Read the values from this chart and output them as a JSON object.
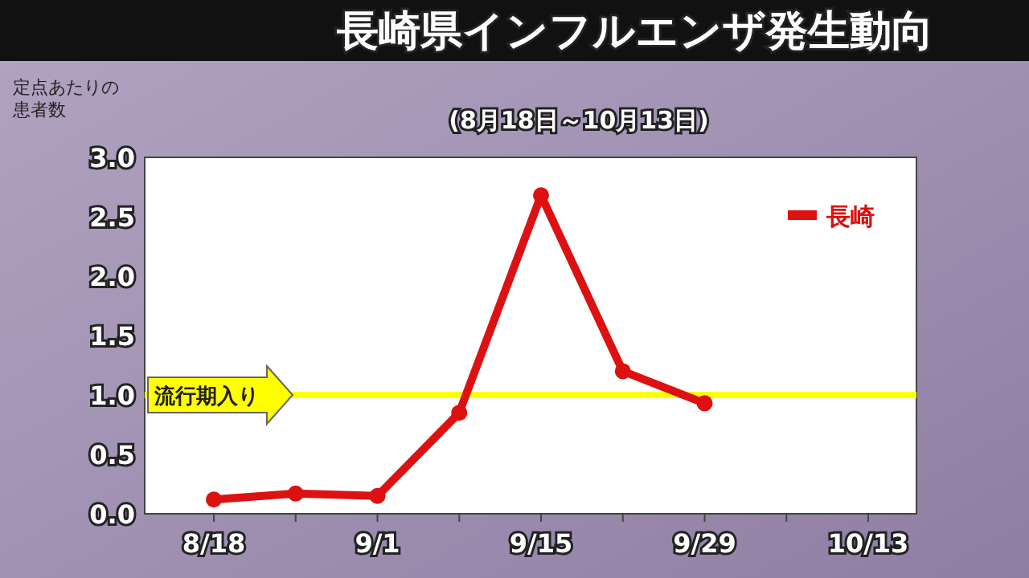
{
  "chart_data": {
    "type": "line",
    "title": "長崎県インフルエンザ発生動向",
    "subtitle": "(8月18日～10月13日)",
    "ylabel": "定点あたりの患者数",
    "categories": [
      "8/18",
      null,
      "9/1",
      null,
      "9/15",
      null,
      "9/29",
      null,
      "10/13"
    ],
    "series": [
      {
        "name": "長崎",
        "color": "#dd1111",
        "values": [
          0.12,
          0.17,
          0.15,
          0.85,
          2.68,
          1.2,
          0.93,
          null,
          null
        ]
      }
    ],
    "ylim": [
      0,
      3
    ],
    "yticks": [
      {
        "value": 0,
        "label": "0.0"
      },
      {
        "value": 0.5,
        "label": "0.5"
      },
      {
        "value": 1,
        "label": "1.0"
      },
      {
        "value": 1.5,
        "label": "1.5"
      },
      {
        "value": 2,
        "label": "2.0"
      },
      {
        "value": 2.5,
        "label": "2.5"
      },
      {
        "value": 3,
        "label": "3.0"
      }
    ],
    "ref_lines": [
      {
        "axis": "y",
        "value": 1,
        "label": "流行期入り",
        "color": "#ffff00"
      }
    ],
    "legend": "top right",
    "marker": "circle",
    "line_style": "solid",
    "grid": false
  }
}
